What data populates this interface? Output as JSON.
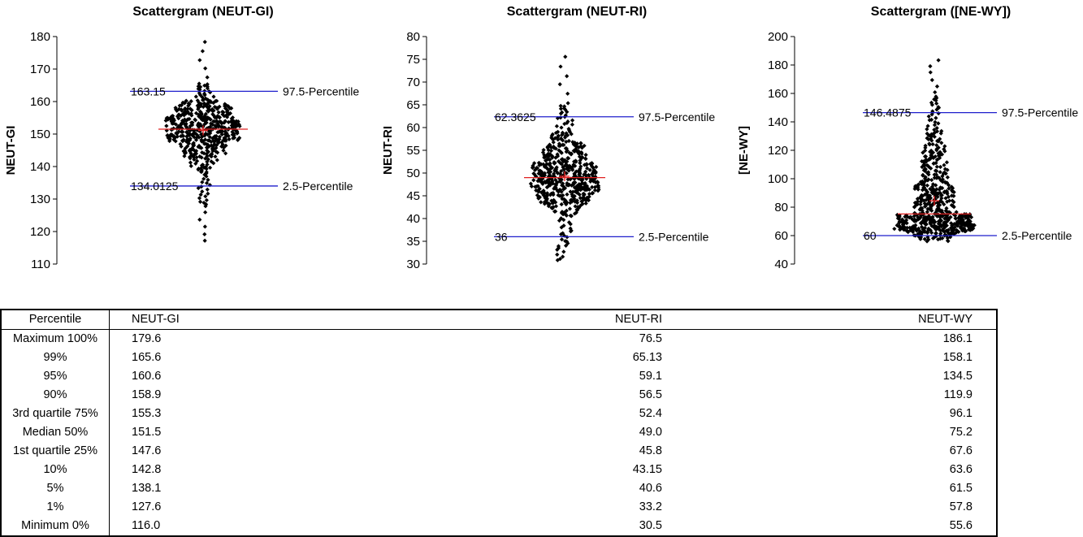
{
  "chart_data": [
    {
      "type": "scatter",
      "title": "Scattergram (NEUT-GI)",
      "ylabel": "NEUT-GI",
      "ylim": [
        110,
        180
      ],
      "yticks": [
        110,
        120,
        130,
        140,
        150,
        160,
        170,
        180
      ],
      "reference_lines": [
        {
          "value": 163.15,
          "value_label": "163.15",
          "label": "97.5-Percentile",
          "color": "#1f1fcc"
        },
        {
          "value": 134.0125,
          "value_label": "134.0125",
          "label": "2.5-Percentile",
          "color": "#1f1fcc"
        }
      ],
      "median": 151.5,
      "mean": 151.1,
      "marker_color": "#e02020",
      "distribution": {
        "min": 116.0,
        "p1": 127.6,
        "p5": 138.1,
        "p10": 142.8,
        "p25": 147.6,
        "p50": 151.5,
        "p75": 155.3,
        "p90": 158.9,
        "p95": 160.6,
        "p99": 165.6,
        "max": 179.6
      }
    },
    {
      "type": "scatter",
      "title": "Scattergram (NEUT-RI)",
      "ylabel": "NEUT-RI",
      "ylim": [
        30,
        80
      ],
      "yticks": [
        30,
        35,
        40,
        45,
        50,
        55,
        60,
        65,
        70,
        75,
        80
      ],
      "reference_lines": [
        {
          "value": 62.3625,
          "value_label": "62.3625",
          "label": "97.5-Percentile",
          "color": "#1f1fcc"
        },
        {
          "value": 36,
          "value_label": "36",
          "label": "2.5-Percentile",
          "color": "#1f1fcc"
        }
      ],
      "median": 49.0,
      "mean": 49.3,
      "marker_color": "#e02020",
      "distribution": {
        "min": 30.5,
        "p1": 33.2,
        "p5": 40.6,
        "p10": 43.15,
        "p25": 45.8,
        "p50": 49.0,
        "p75": 52.4,
        "p90": 56.5,
        "p95": 59.1,
        "p99": 65.13,
        "max": 76.5
      }
    },
    {
      "type": "scatter",
      "title": "Scattergram ([NE-WY])",
      "ylabel": "[NE-WY]",
      "ylim": [
        40,
        200
      ],
      "yticks": [
        40,
        60,
        80,
        100,
        120,
        140,
        160,
        180,
        200
      ],
      "reference_lines": [
        {
          "value": 146.4875,
          "value_label": "146.4875",
          "label": "97.5-Percentile",
          "color": "#1f1fcc"
        },
        {
          "value": 60,
          "value_label": "60",
          "label": "2.5-Percentile",
          "color": "#1f1fcc"
        }
      ],
      "median": 75.2,
      "mean": 84.5,
      "marker_color": "#e02020",
      "distribution": {
        "min": 55.6,
        "p1": 57.8,
        "p5": 61.5,
        "p10": 63.6,
        "p25": 67.6,
        "p50": 75.2,
        "p75": 96.1,
        "p90": 119.9,
        "p95": 134.5,
        "p99": 158.1,
        "max": 186.1
      }
    }
  ],
  "table": {
    "headers": [
      "Percentile",
      "NEUT-GI",
      "NEUT-RI",
      "NEUT-WY"
    ],
    "rows": [
      [
        "Maximum 100%",
        "179.6",
        "76.5",
        "186.1"
      ],
      [
        "99%",
        "165.6",
        "65.13",
        "158.1"
      ],
      [
        "95%",
        "160.6",
        "59.1",
        "134.5"
      ],
      [
        "90%",
        "158.9",
        "56.5",
        "119.9"
      ],
      [
        "3rd quartile 75%",
        "155.3",
        "52.4",
        "96.1"
      ],
      [
        "Median 50%",
        "151.5",
        "49.0",
        "75.2"
      ],
      [
        "1st quartile 25%",
        "147.6",
        "45.8",
        "67.6"
      ],
      [
        "10%",
        "142.8",
        "43.15",
        "63.6"
      ],
      [
        "5%",
        "138.1",
        "40.6",
        "61.5"
      ],
      [
        "1%",
        "127.6",
        "33.2",
        "57.8"
      ],
      [
        "Minimum 0%",
        "116.0",
        "30.5",
        "55.6"
      ]
    ]
  }
}
